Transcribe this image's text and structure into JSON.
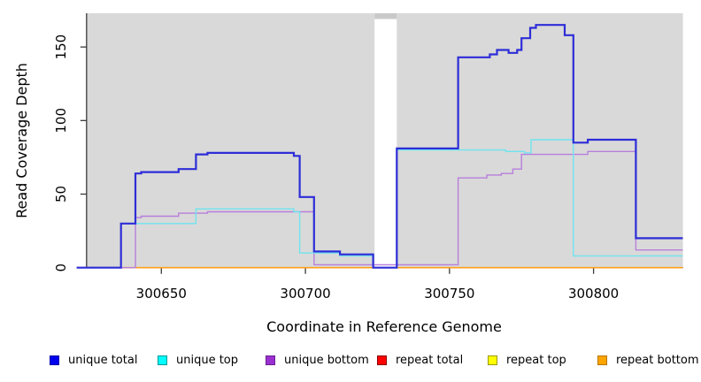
{
  "chart_data": {
    "type": "line",
    "step_mode": "after",
    "title": "",
    "xlabel": "Coordinate in Reference Genome",
    "ylabel": "Read Coverage Depth",
    "x_ticks": [
      300650,
      300700,
      300750,
      300800
    ],
    "y_ticks": [
      0,
      50,
      100,
      150
    ],
    "xlim": [
      300620.6,
      300831
    ],
    "ylim": [
      0,
      173
    ],
    "grid": false,
    "legend_position": "bottom",
    "panel_bg": "#d9d9d9",
    "gap_bridge_color": "#c9c9c9",
    "axis_color": "#3a3a3a",
    "panels": [
      {
        "x1": 300624.0,
        "x2": 300724.0
      },
      {
        "x1": 300731.7,
        "x2": 300831.0
      }
    ],
    "gap": {
      "x1": 300724.0,
      "x2": 300731.7
    },
    "series": [
      {
        "name": "unique total",
        "color": "#2d2dd8",
        "legend_fill": "#0000ee",
        "legend_border": "#0000aa",
        "width": 2.2,
        "points": [
          [
            300620.6,
            0
          ],
          [
            300636,
            30
          ],
          [
            300641,
            64
          ],
          [
            300643,
            65
          ],
          [
            300656,
            67
          ],
          [
            300662,
            77
          ],
          [
            300666,
            78
          ],
          [
            300696,
            76
          ],
          [
            300698,
            48
          ],
          [
            300703,
            11
          ],
          [
            300712,
            9
          ],
          [
            300723.5,
            0
          ],
          [
            300731.7,
            81
          ],
          [
            300753,
            143
          ],
          [
            300764,
            145
          ],
          [
            300766.5,
            148
          ],
          [
            300770.5,
            146
          ],
          [
            300773.5,
            148
          ],
          [
            300775,
            156
          ],
          [
            300778,
            163
          ],
          [
            300780,
            165
          ],
          [
            300790,
            158
          ],
          [
            300793,
            85
          ],
          [
            300798,
            87
          ],
          [
            300814.7,
            20
          ]
        ]
      },
      {
        "name": "unique top",
        "color": "#6fe4ef",
        "legend_fill": "#00ffff",
        "legend_border": "#009999",
        "width": 1.4,
        "points": [
          [
            300620.6,
            0
          ],
          [
            300636,
            30
          ],
          [
            300662,
            40
          ],
          [
            300696,
            38
          ],
          [
            300698,
            10
          ],
          [
            300712,
            8
          ],
          [
            300723.5,
            0
          ],
          [
            300731.7,
            80
          ],
          [
            300769.5,
            79
          ],
          [
            300776,
            78
          ],
          [
            300778.3,
            87
          ],
          [
            300793,
            8
          ]
        ]
      },
      {
        "name": "unique bottom",
        "color": "#b77fdc",
        "legend_fill": "#9b30d0",
        "legend_border": "#6a1f92",
        "width": 1.4,
        "points": [
          [
            300620.6,
            0
          ],
          [
            300641,
            34
          ],
          [
            300643,
            35
          ],
          [
            300656,
            37
          ],
          [
            300666,
            38
          ],
          [
            300703,
            2
          ],
          [
            300753,
            61
          ],
          [
            300763,
            63
          ],
          [
            300768,
            64
          ],
          [
            300772,
            67
          ],
          [
            300775,
            77
          ],
          [
            300798,
            79
          ],
          [
            300814.7,
            12
          ]
        ]
      },
      {
        "name": "repeat total",
        "color": "#e02020",
        "legend_fill": "#ff0000",
        "legend_border": "#8b0000",
        "width": 1.2,
        "points": [
          [
            300620.6,
            0
          ]
        ]
      },
      {
        "name": "repeat top",
        "color": "#f5f500",
        "legend_fill": "#ffff00",
        "legend_border": "#9a9a00",
        "width": 1.2,
        "points": [
          [
            300620.6,
            0
          ]
        ]
      },
      {
        "name": "repeat bottom",
        "color": "#ff9f1a",
        "legend_fill": "#ffa500",
        "legend_border": "#b97400",
        "width": 1.6,
        "points": [
          [
            300620.6,
            0
          ]
        ]
      }
    ]
  }
}
